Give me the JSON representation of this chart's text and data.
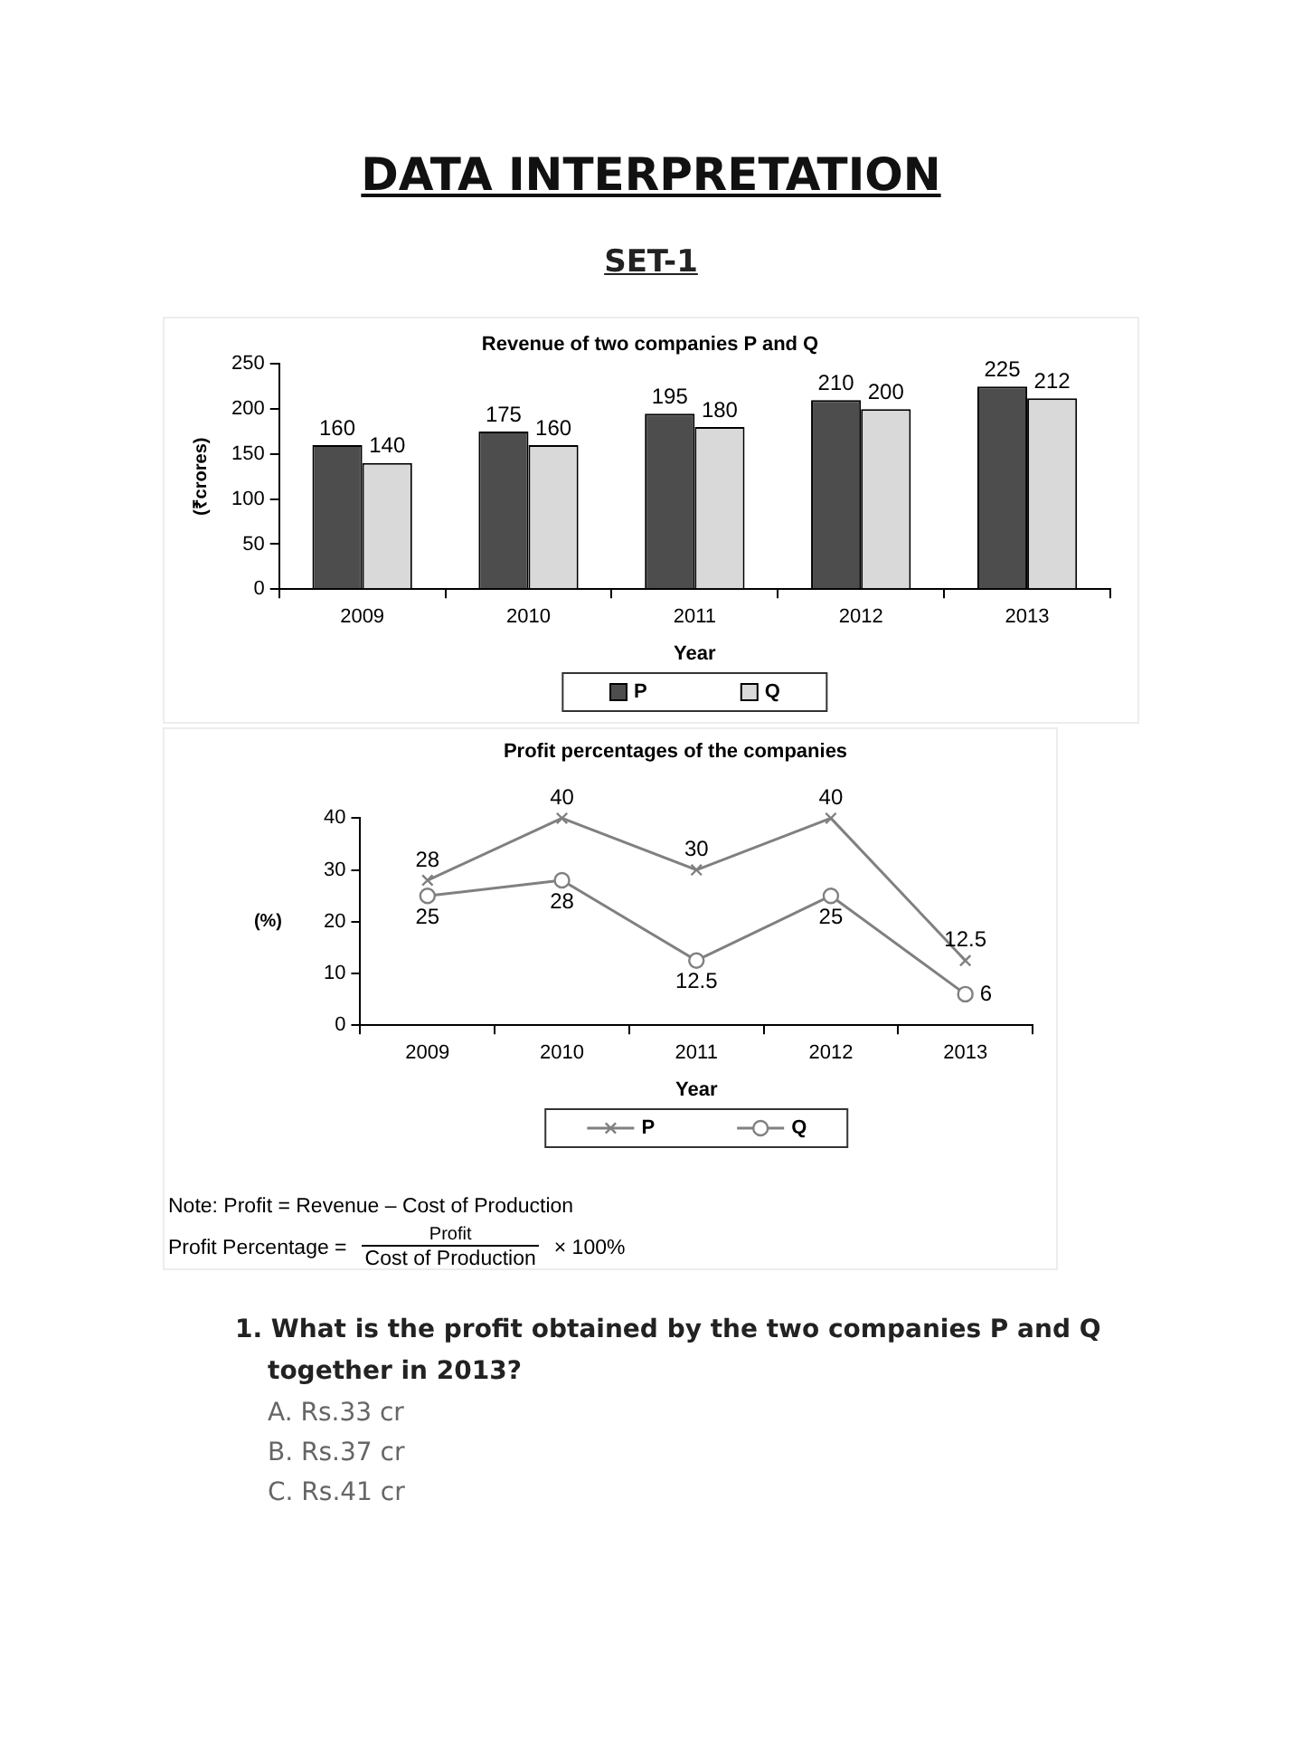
{
  "chart_data": [
    {
      "type": "other",
      "title": "DATA INTERPRETATION",
      "subtitle": "SET-1"
    },
    {
      "type": "bar",
      "title": "Revenue of two companies P and Q",
      "xlabel": "Year",
      "ylabel": "(₹crores)",
      "categories": [
        "2009",
        "2010",
        "2011",
        "2012",
        "2013"
      ],
      "series": [
        {
          "name": "P",
          "color": "#4d4d4d",
          "values": [
            160,
            175,
            195,
            210,
            225
          ]
        },
        {
          "name": "Q",
          "color": "#d9d9d9",
          "values": [
            140,
            160,
            180,
            200,
            212
          ]
        }
      ],
      "ylim": [
        0,
        250
      ],
      "yticks": [
        0,
        50,
        100,
        150,
        200,
        250
      ],
      "data_labels": true,
      "legend": "bottom"
    },
    {
      "type": "line",
      "title": "Profit percentages of the companies",
      "xlabel": "Year",
      "ylabel": "(%)",
      "categories": [
        "2009",
        "2010",
        "2011",
        "2012",
        "2013"
      ],
      "series": [
        {
          "name": "P",
          "color": "#808080",
          "marker": "cross",
          "values": [
            28,
            40,
            30,
            40,
            12.5
          ]
        },
        {
          "name": "Q",
          "color": "#808080",
          "marker": "circle",
          "values": [
            25,
            28,
            12.5,
            25,
            6
          ]
        }
      ],
      "ylim": [
        0,
        40
      ],
      "yticks": [
        0,
        10,
        20,
        30,
        40
      ],
      "data_labels": true,
      "legend": "bottom",
      "line_style": "solid",
      "annotations": [
        "Note: Profit = Revenue – Cost of Production",
        "Profit Percentage =",
        "Profit",
        "Cost of Production",
        "× 100%"
      ]
    },
    {
      "type": "other",
      "title": "1. What is the profit obtained by the two companies P and Q together in 2013?",
      "annotations": [
        "A. Rs.33 cr",
        "B. Rs.37 cr",
        "C. Rs.41 cr"
      ]
    }
  ]
}
